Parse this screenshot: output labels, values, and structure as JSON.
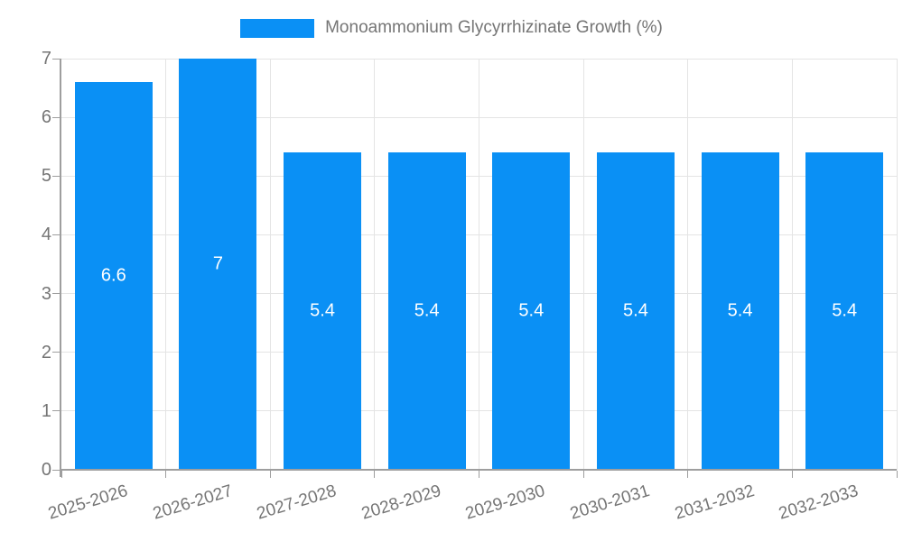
{
  "chart_data": {
    "type": "bar",
    "title": "Monoammonium Glycyrrhizinate Growth (%)",
    "categories": [
      "2025-2026",
      "2026-2027",
      "2027-2028",
      "2028-2029",
      "2029-2030",
      "2030-2031",
      "2031-2032",
      "2032-2033"
    ],
    "values": [
      6.6,
      7,
      5.4,
      5.4,
      5.4,
      5.4,
      5.4,
      5.4
    ],
    "value_labels": [
      "6.6",
      "7",
      "5.4",
      "5.4",
      "5.4",
      "5.4",
      "5.4",
      "5.4"
    ],
    "xlabel": "",
    "ylabel": "",
    "ylim": [
      0,
      7
    ],
    "yticks": [
      0,
      1,
      2,
      3,
      4,
      5,
      6,
      7
    ],
    "grid": true,
    "legend_position": "top",
    "colors": {
      "bar": "#0A90F5",
      "grid": "#E4E4E4",
      "axis": "#9E9E9E",
      "tick_text": "#757575",
      "legend_text": "#757575",
      "value_text": "#FFFFFF",
      "background": "#FFFFFF"
    }
  }
}
